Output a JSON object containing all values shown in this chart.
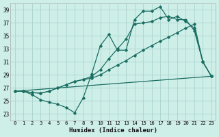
{
  "background_color": "#ceeee8",
  "grid_color": "#aad4ce",
  "line_color": "#1a6e62",
  "xlabel": "Humidex (Indice chaleur)",
  "xlim": [
    -0.5,
    23.5
  ],
  "ylim": [
    22,
    40
  ],
  "yticks": [
    23,
    25,
    27,
    29,
    31,
    33,
    35,
    37,
    39
  ],
  "xticks": [
    0,
    1,
    2,
    3,
    4,
    5,
    6,
    7,
    8,
    9,
    10,
    11,
    12,
    13,
    14,
    15,
    16,
    17,
    18,
    19,
    20,
    21,
    22,
    23
  ],
  "line1_x": [
    0,
    1,
    2,
    3,
    4,
    5,
    6,
    7,
    8,
    9,
    10,
    11,
    12,
    13,
    14,
    15,
    16,
    17,
    18,
    19,
    20,
    21,
    22,
    23
  ],
  "line1_y": [
    26.5,
    26.5,
    26.0,
    25.2,
    24.8,
    24.5,
    24.0,
    23.2,
    25.5,
    29.2,
    33.5,
    35.2,
    32.8,
    32.8,
    37.5,
    38.8,
    38.8,
    39.5,
    37.5,
    38.0,
    37.2,
    36.2,
    31.0,
    28.8
  ],
  "line2_x": [
    0,
    1,
    2,
    3,
    4,
    5,
    6,
    7,
    8,
    9,
    10,
    11,
    12,
    13,
    14,
    15,
    16,
    17,
    18,
    19,
    20,
    21,
    22,
    23
  ],
  "line2_y": [
    26.5,
    26.5,
    26.3,
    26.2,
    26.5,
    27.0,
    27.5,
    28.0,
    28.3,
    28.8,
    29.8,
    31.5,
    33.0,
    34.5,
    36.8,
    37.0,
    37.2,
    37.8,
    38.0,
    37.5,
    37.5,
    35.8,
    31.0,
    28.8
  ],
  "line3_x": [
    0,
    23
  ],
  "line3_y": [
    26.5,
    28.8
  ],
  "line4_x": [
    0,
    1,
    2,
    3,
    4,
    5,
    6,
    7,
    8,
    9,
    10,
    11,
    12,
    13,
    14,
    15,
    16,
    17,
    18,
    19,
    20,
    21,
    22,
    23
  ],
  "line4_y": [
    26.5,
    26.5,
    26.3,
    26.2,
    26.5,
    27.0,
    27.5,
    28.0,
    28.3,
    28.5,
    29.0,
    29.8,
    30.5,
    31.2,
    32.0,
    32.8,
    33.5,
    34.2,
    34.8,
    35.5,
    36.2,
    36.8,
    31.0,
    28.8
  ]
}
